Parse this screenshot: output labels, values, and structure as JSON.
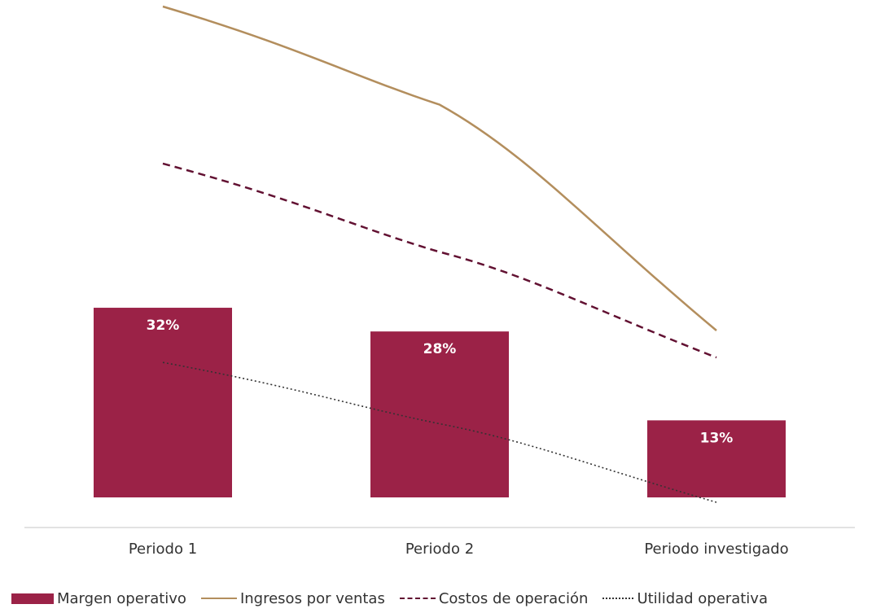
{
  "chart_data": {
    "type": "bar",
    "title": "",
    "xlabel": "",
    "ylabel": "",
    "categories": [
      "Periodo 1",
      "Periodo 2",
      "Periodo investigado"
    ],
    "bar_series": {
      "name": "Margen operativo",
      "values": [
        32,
        28,
        13
      ],
      "labels": [
        "32%",
        "28%",
        "13%"
      ],
      "color": "#9b2247"
    },
    "line_series": [
      {
        "name": "Ingresos por ventas",
        "values": [
          100,
          80,
          34
        ],
        "style": "solid",
        "color": "#b38e5d"
      },
      {
        "name": "Costos de operación",
        "values": [
          68,
          50,
          28.5
        ],
        "style": "dashed",
        "color": "#621132"
      },
      {
        "name": "Utilidad operativa",
        "values": [
          27.5,
          15,
          -1
        ],
        "style": "dotted",
        "color": "#333333"
      }
    ],
    "value_axis_visible": false,
    "grid": false,
    "legend_position": "bottom"
  }
}
